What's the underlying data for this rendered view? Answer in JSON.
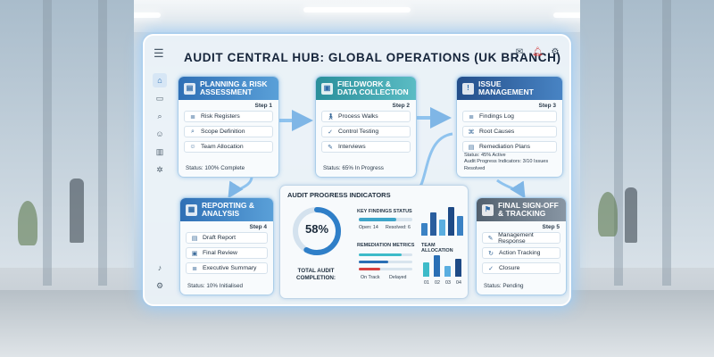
{
  "header": {
    "title": "Audit Central Hub: Global Operations (UK Branch)",
    "menu_icon": "menu-icon",
    "icons": [
      "mail-icon",
      "bell-icon",
      "gear-icon"
    ]
  },
  "sidebar": {
    "icons": [
      "home-icon",
      "inbox-icon",
      "search-icon",
      "users-icon",
      "chart-icon",
      "settings-icon",
      "bell-icon",
      "gear-icon"
    ]
  },
  "cards": {
    "planning": {
      "title": "Planning & Risk Assessment",
      "step": "Step 1",
      "items": [
        "Risk Registers",
        "Scope Definition",
        "Team Allocation"
      ],
      "status": "Status: 100% Complete"
    },
    "fieldwork": {
      "title": "Fieldwork & Data Collection",
      "step": "Step 2",
      "items": [
        "Process Walks",
        "Control Testing",
        "Interviews"
      ],
      "status": "Status: 65% In Progress"
    },
    "issue": {
      "title": "Issue Management",
      "step": "Step 3",
      "items": [
        "Findings Log",
        "Root Causes",
        "Remediation Plans"
      ],
      "status_line1": "Status: 45% Active",
      "status_line2": "Audit Progress Indicators: 3/10 Issues Resolved"
    },
    "reporting": {
      "title": "Reporting & Analysis",
      "step": "Step 4",
      "items": [
        "Draft Report",
        "Final Review",
        "Executive Summary"
      ],
      "status": "Status: 10% Initialised"
    },
    "signoff": {
      "title": "Final Sign-off & Tracking",
      "step": "Step 5",
      "items": [
        "Management Response",
        "Action Tracking",
        "Closure"
      ],
      "status": "Status: Pending"
    }
  },
  "indicators": {
    "title": "Audit Progress Indicators",
    "completion": {
      "value": "58%",
      "fraction": 0.58,
      "label": "Total Audit Completion:"
    },
    "key_findings": {
      "title": "Key Findings Status",
      "open": "Open: 14",
      "resolved": "Resolved: 6"
    },
    "remediation": {
      "title": "Remediation Metrics",
      "on_track": "On Track",
      "delayed": "Delayed"
    },
    "team_allocation": {
      "title": "Team Allocation",
      "labels": [
        "01",
        "02",
        "03",
        "04"
      ]
    }
  },
  "colors": {
    "accent": "#2f6fb5",
    "teal": "#3da5c9",
    "navy": "#1c3d70",
    "alert": "#d64040"
  }
}
